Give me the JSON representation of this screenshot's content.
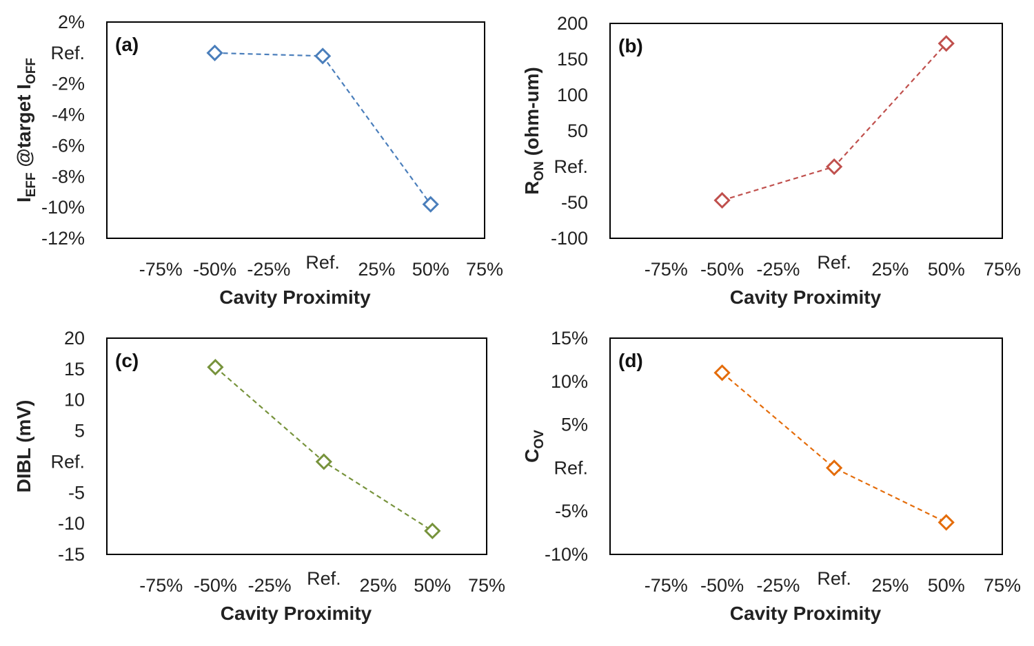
{
  "chart_data": [
    {
      "type": "line",
      "panel_label": "(a)",
      "xlabel": "Cavity Proximity",
      "ylabel": {
        "main": "I",
        "sub1": "EFF",
        "mid": " @target I",
        "sub2": "OFF"
      },
      "x_ticks": [
        "-75%",
        "-50%",
        "-25%",
        "Ref.",
        "25%",
        "50%",
        "75%"
      ],
      "x_tick_values": [
        -75,
        -50,
        -25,
        0,
        25,
        50,
        75
      ],
      "xlim": [
        -100,
        75
      ],
      "y_ticks": [
        "2%",
        "Ref.",
        "-2%",
        "-4%",
        "-6%",
        "-8%",
        "-10%",
        "-12%"
      ],
      "y_tick_values": [
        2,
        0,
        -2,
        -4,
        -6,
        -8,
        -10,
        -12
      ],
      "ylim": [
        -12,
        2
      ],
      "series": [
        {
          "x": [
            -50,
            0,
            50
          ],
          "values": [
            0.0,
            -0.2,
            -9.8
          ]
        }
      ],
      "color": "#4A7EBB",
      "grid": false
    },
    {
      "type": "line",
      "panel_label": "(b)",
      "xlabel": "Cavity Proximity",
      "ylabel": {
        "main": "R",
        "sub1": "ON",
        "mid": " (ohm-um)",
        "sub2": ""
      },
      "x_ticks": [
        "-75%",
        "-50%",
        "-25%",
        "Ref.",
        "25%",
        "50%",
        "75%"
      ],
      "x_tick_values": [
        -75,
        -50,
        -25,
        0,
        25,
        50,
        75
      ],
      "xlim": [
        -100,
        75
      ],
      "y_ticks": [
        "200",
        "150",
        "100",
        "50",
        "Ref.",
        "-50",
        "-100"
      ],
      "y_tick_values": [
        200,
        150,
        100,
        50,
        0,
        -50,
        -100
      ],
      "ylim": [
        -100,
        200
      ],
      "series": [
        {
          "x": [
            -50,
            0,
            50
          ],
          "values": [
            -47,
            0,
            172
          ]
        }
      ],
      "color": "#C0504D",
      "grid": false
    },
    {
      "type": "line",
      "panel_label": "(c)",
      "xlabel": "Cavity Proximity",
      "ylabel": {
        "main": "DIBL (mV)",
        "sub1": "",
        "mid": "",
        "sub2": ""
      },
      "x_ticks": [
        "-75%",
        "-50%",
        "-25%",
        "Ref.",
        "25%",
        "50%",
        "75%"
      ],
      "x_tick_values": [
        -75,
        -50,
        -25,
        0,
        25,
        50,
        75
      ],
      "xlim": [
        -100,
        75
      ],
      "y_ticks": [
        "20",
        "15",
        "10",
        "5",
        "Ref.",
        "-5",
        "-10",
        "-15"
      ],
      "y_tick_values": [
        20,
        15,
        10,
        5,
        0,
        -5,
        -10,
        -15
      ],
      "ylim": [
        -15,
        20
      ],
      "series": [
        {
          "x": [
            -50,
            0,
            50
          ],
          "values": [
            15.3,
            0,
            -11.2
          ]
        }
      ],
      "color": "#77933C",
      "grid": false
    },
    {
      "type": "line",
      "panel_label": "(d)",
      "xlabel": "Cavity Proximity",
      "ylabel": {
        "main": "C",
        "sub1": "OV",
        "mid": "",
        "sub2": ""
      },
      "x_ticks": [
        "-75%",
        "-50%",
        "-25%",
        "Ref.",
        "25%",
        "50%",
        "75%"
      ],
      "x_tick_values": [
        -75,
        -50,
        -25,
        0,
        25,
        50,
        75
      ],
      "xlim": [
        -100,
        75
      ],
      "y_ticks": [
        "15%",
        "10%",
        "5%",
        "Ref.",
        "-5%",
        "-10%"
      ],
      "y_tick_values": [
        15,
        10,
        5,
        0,
        -5,
        -10
      ],
      "ylim": [
        -10,
        15
      ],
      "series": [
        {
          "x": [
            -50,
            0,
            50
          ],
          "values": [
            11.0,
            0,
            -6.3
          ]
        }
      ],
      "color": "#E46C0A",
      "grid": false
    }
  ]
}
